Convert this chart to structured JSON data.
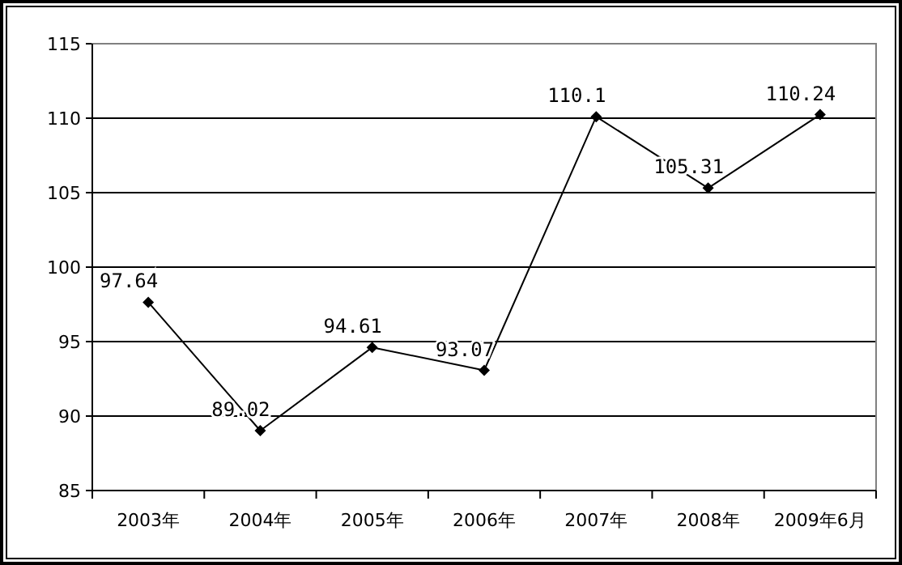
{
  "chart_data": {
    "type": "line",
    "categories": [
      "2003年",
      "2004年",
      "2005年",
      "2006年",
      "2007年",
      "2008年",
      "2009年6月"
    ],
    "series": [
      {
        "color": "#000000",
        "values": [
          97.64,
          89.02,
          94.61,
          93.07,
          110.1,
          105.31,
          110.24
        ]
      }
    ],
    "ylim": [
      85,
      115
    ],
    "yticks": [
      85,
      90,
      95,
      100,
      105,
      110,
      115
    ],
    "grid": "y",
    "marker": "diamond",
    "line_style": "solid",
    "data_labels": true
  }
}
